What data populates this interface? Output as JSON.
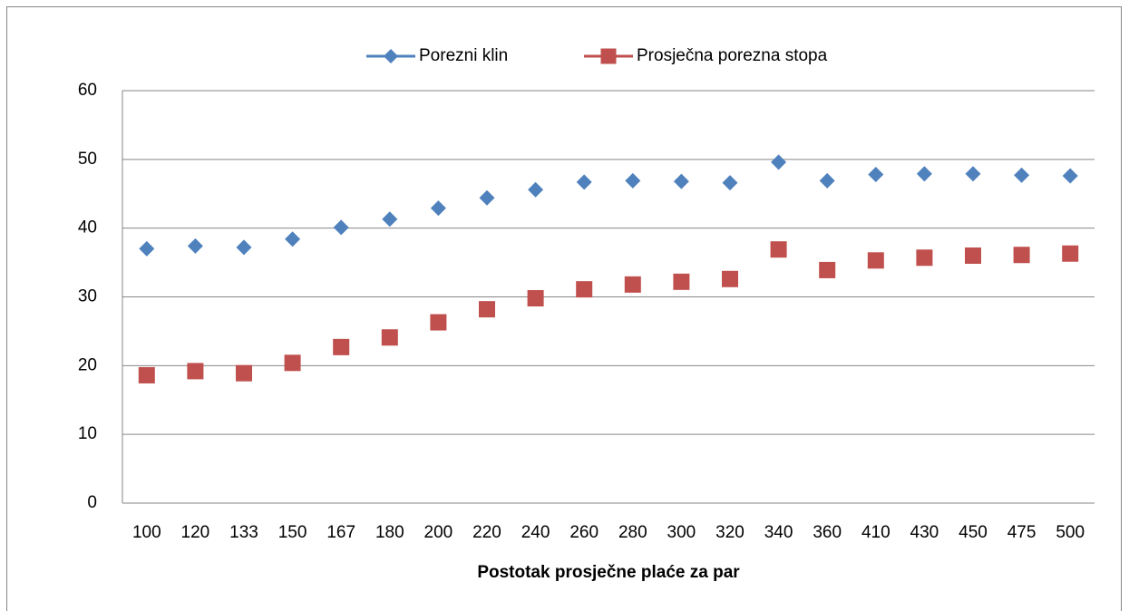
{
  "chart_data": {
    "type": "scatter",
    "x_label": "Postotak prosječne plaće za par",
    "categories": [
      "100",
      "120",
      "133",
      "150",
      "167",
      "180",
      "200",
      "220",
      "240",
      "260",
      "280",
      "300",
      "320",
      "340",
      "360",
      "410",
      "430",
      "450",
      "475",
      "500"
    ],
    "series": [
      {
        "name": "Porezni klin",
        "color": "#4f81bd",
        "marker": "diamond",
        "values": [
          37.0,
          37.4,
          37.2,
          38.4,
          40.1,
          41.3,
          42.9,
          44.4,
          45.6,
          46.7,
          46.9,
          46.8,
          46.6,
          49.6,
          46.9,
          47.8,
          47.9,
          47.9,
          47.7,
          47.6
        ]
      },
      {
        "name": "Prosječna porezna stopa",
        "color": "#c0504d",
        "marker": "square",
        "values": [
          18.6,
          19.2,
          18.9,
          20.4,
          22.7,
          24.1,
          26.3,
          28.2,
          29.8,
          31.1,
          31.8,
          32.2,
          32.6,
          36.9,
          33.9,
          35.3,
          35.7,
          36.0,
          36.1,
          36.3
        ]
      }
    ],
    "ylim": [
      0,
      60
    ],
    "yticks": [
      0,
      10,
      20,
      30,
      40,
      50,
      60
    ],
    "grid": true,
    "legend": "top"
  }
}
